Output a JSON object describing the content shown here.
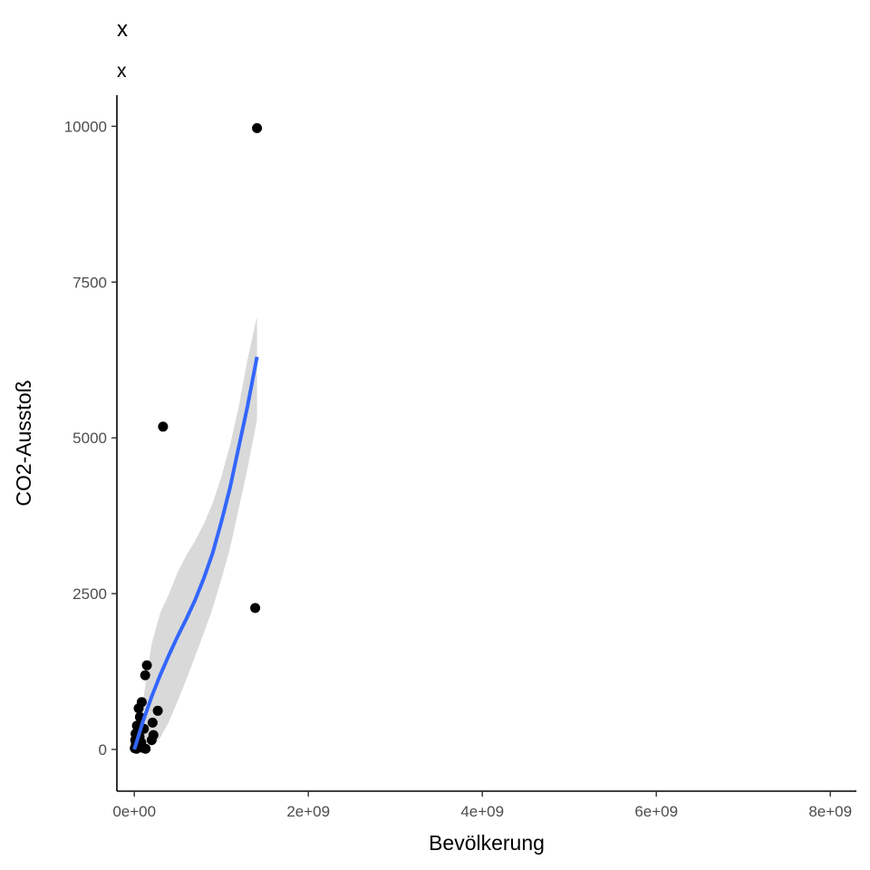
{
  "chart_data": {
    "type": "scatter",
    "title": "x",
    "subtitle": "x",
    "xlabel": "Bevölkerung",
    "ylabel": "CO2-Ausstoß",
    "xlim": [
      -200000000,
      8300000000
    ],
    "ylim": [
      -670,
      10500
    ],
    "x_ticks": [
      0,
      2000000000,
      4000000000,
      6000000000,
      8000000000
    ],
    "x_tick_labels": [
      "0e+00",
      "2e+09",
      "4e+09",
      "6e+09",
      "8e+09"
    ],
    "y_ticks": [
      0,
      2500,
      5000,
      7500,
      10000
    ],
    "y_tick_labels": [
      "0",
      "2500",
      "5000",
      "7500",
      "10000"
    ],
    "grid": false,
    "colors": {
      "points": "#000000",
      "smooth_line": "#3366ff",
      "confidence_band": "#d9d9d9",
      "axis": "#000000"
    },
    "points": [
      {
        "x": 1410000000,
        "y": 9970
      },
      {
        "x": 330000000,
        "y": 5180
      },
      {
        "x": 1390000000,
        "y": 2270
      },
      {
        "x": 145000000,
        "y": 1350
      },
      {
        "x": 125000000,
        "y": 1190
      },
      {
        "x": 270000000,
        "y": 620
      },
      {
        "x": 85000000,
        "y": 760
      },
      {
        "x": 50000000,
        "y": 660
      },
      {
        "x": 210000000,
        "y": 430
      },
      {
        "x": 220000000,
        "y": 230
      },
      {
        "x": 200000000,
        "y": 150
      },
      {
        "x": 110000000,
        "y": 330
      },
      {
        "x": 65000000,
        "y": 520
      },
      {
        "x": 30000000,
        "y": 380
      },
      {
        "x": 10000000,
        "y": 150
      },
      {
        "x": 18000000,
        "y": 80
      },
      {
        "x": 45000000,
        "y": 40
      },
      {
        "x": 80000000,
        "y": 110
      },
      {
        "x": 100000000,
        "y": 25
      },
      {
        "x": 130000000,
        "y": 10
      },
      {
        "x": 5000000,
        "y": 20
      },
      {
        "x": 25000000,
        "y": 10
      },
      {
        "x": 60000000,
        "y": 200
      },
      {
        "x": 15000000,
        "y": 250
      },
      {
        "x": 40000000,
        "y": 300
      },
      {
        "x": 70000000,
        "y": 60
      },
      {
        "x": 35000000,
        "y": 120
      }
    ],
    "smooth": {
      "x": [
        0,
        100000000,
        200000000,
        300000000,
        400000000,
        500000000,
        600000000,
        700000000,
        800000000,
        900000000,
        1000000000,
        1100000000,
        1200000000,
        1300000000,
        1410000000
      ],
      "y": [
        0,
        450,
        850,
        1200,
        1520,
        1820,
        2100,
        2400,
        2750,
        3150,
        3650,
        4200,
        4850,
        5500,
        6300
      ],
      "lower": [
        -10,
        150,
        50,
        190,
        450,
        780,
        1130,
        1500,
        1870,
        2260,
        2730,
        3230,
        3860,
        4500,
        5290
      ],
      "upper": [
        40,
        780,
        1700,
        2200,
        2500,
        2850,
        3120,
        3350,
        3620,
        3950,
        4370,
        4880,
        5500,
        6250,
        6950
      ]
    }
  }
}
